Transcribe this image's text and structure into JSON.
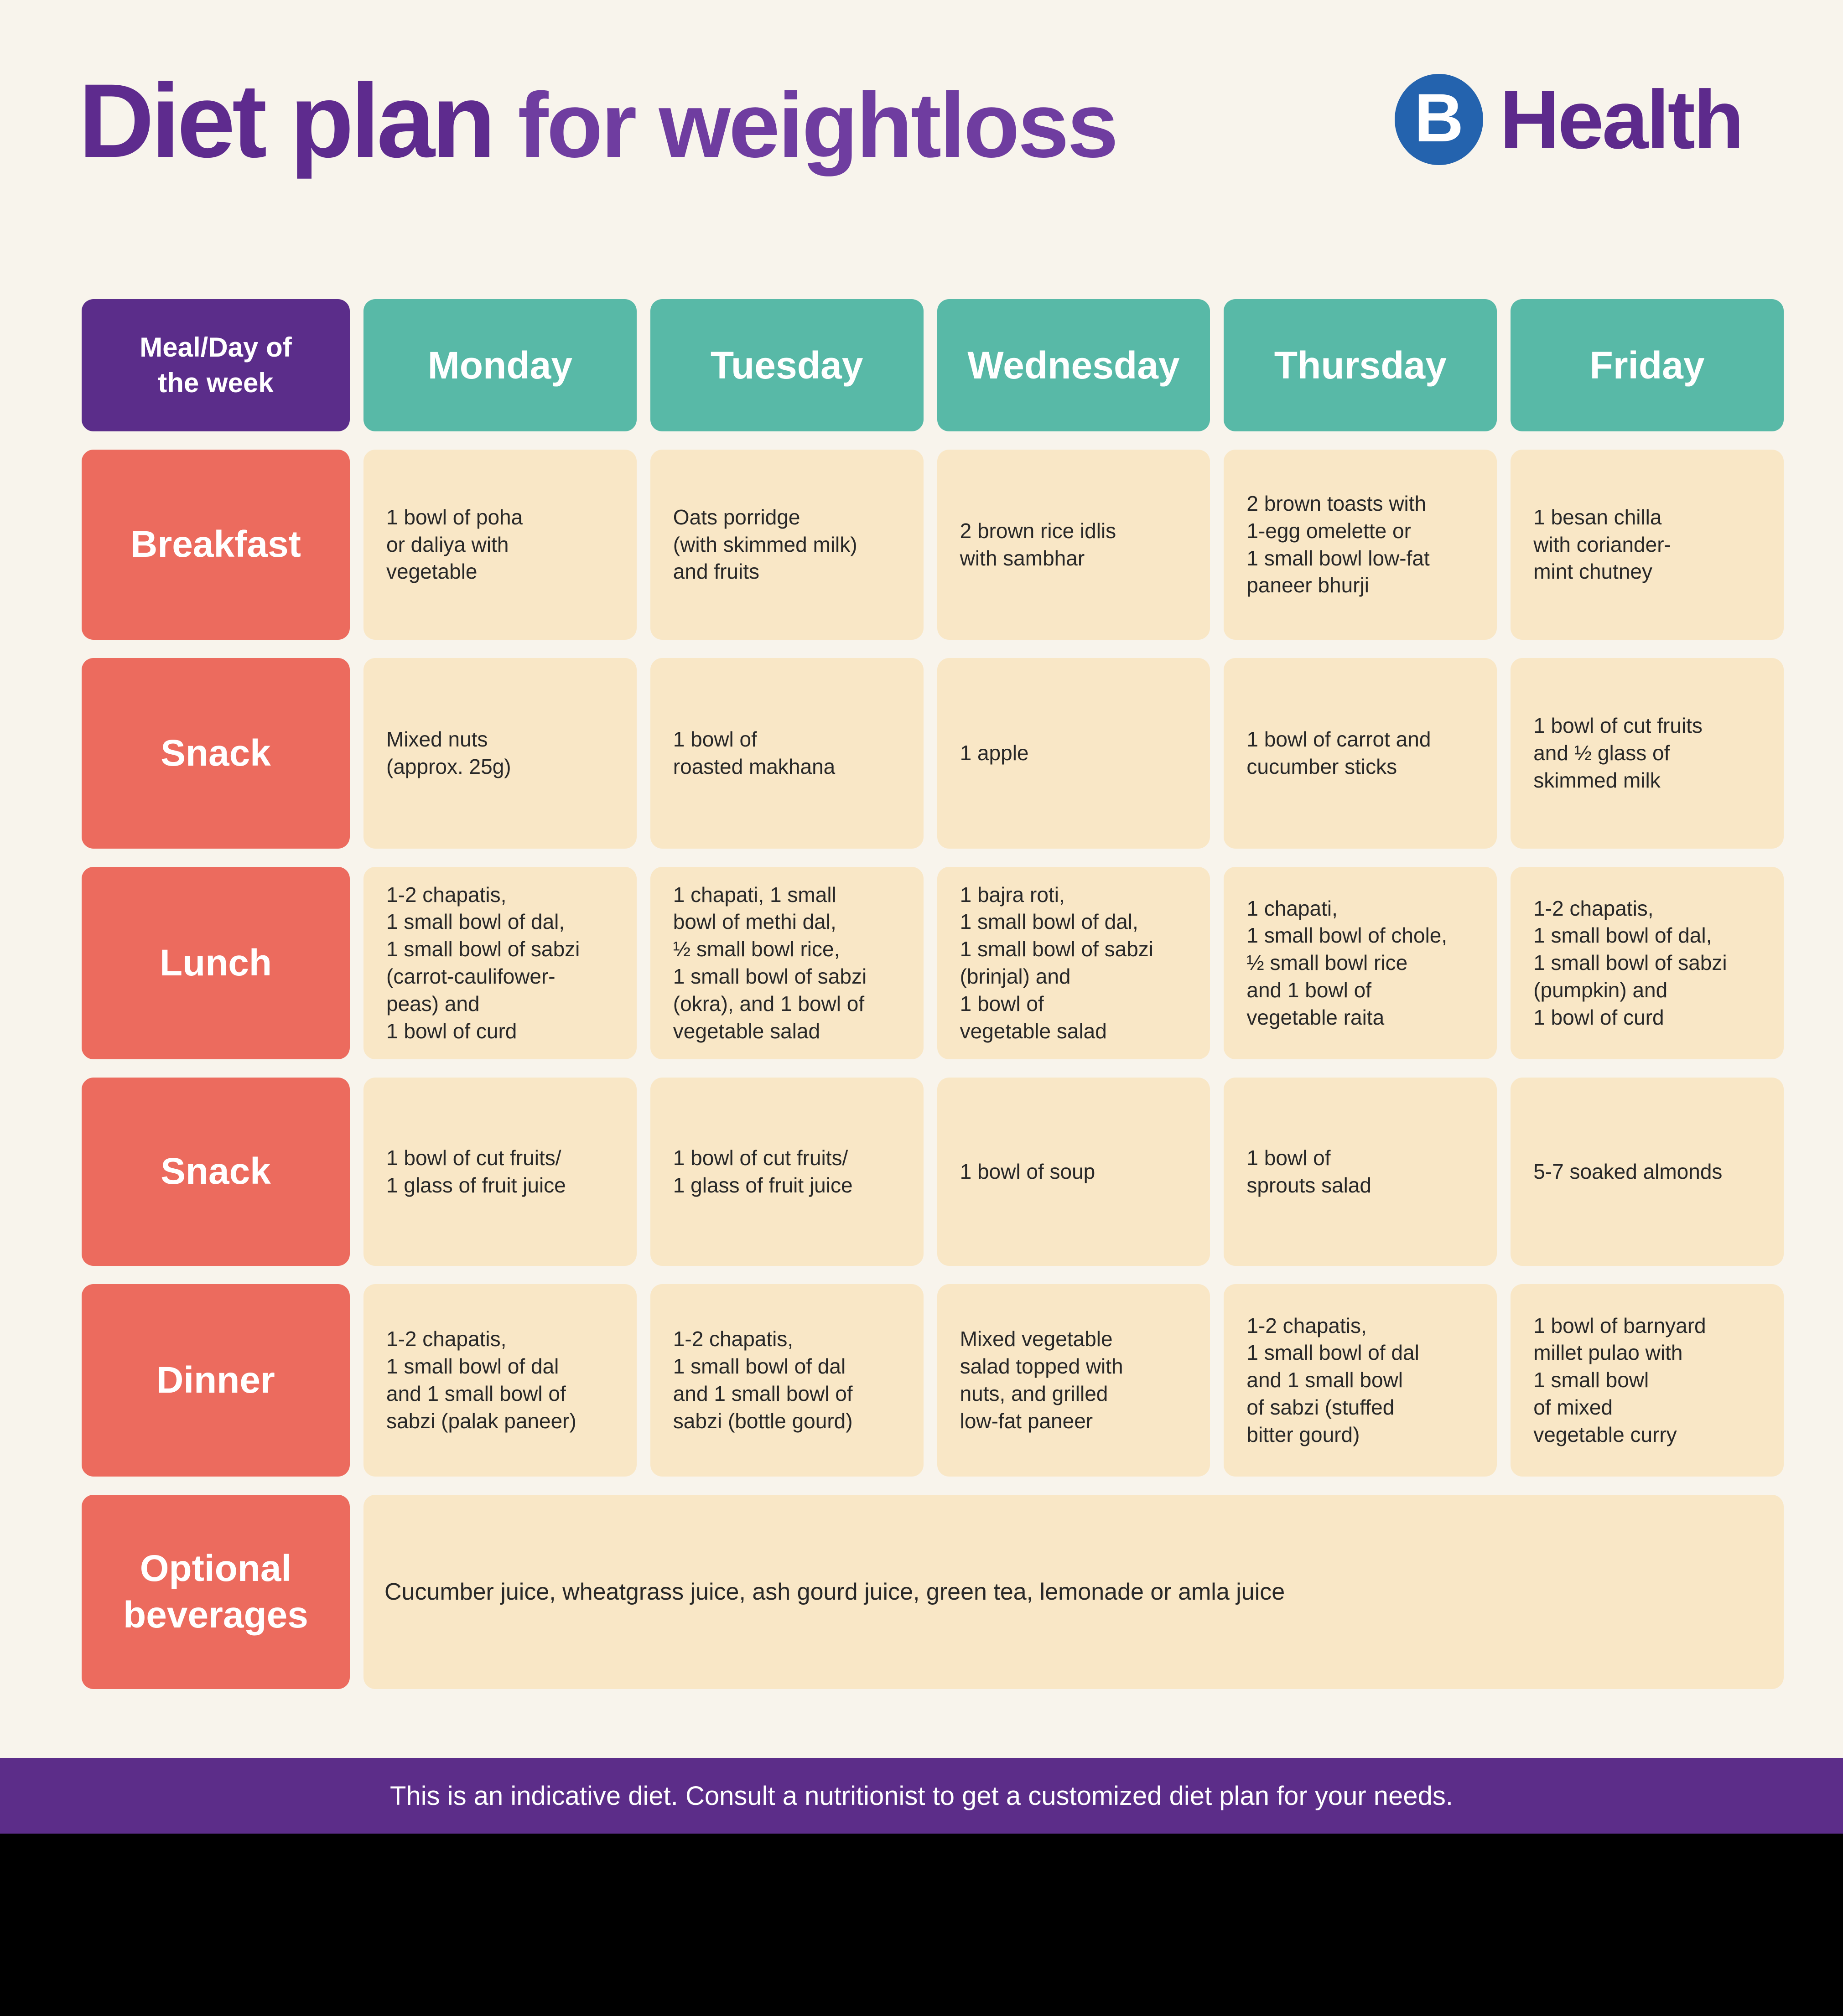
{
  "title": {
    "main": "Diet plan",
    "sub": "for weightloss"
  },
  "logo": {
    "monogram": "B",
    "brand": "Health"
  },
  "colors": {
    "background": "#f8f4ec",
    "title_purple": "#5e2b8e",
    "header_purple": "#5b2d8a",
    "day_teal": "#58b9a7",
    "label_coral": "#ec6b5e",
    "cell_beige": "#f9e7c6",
    "logo_blue": "#2463ae",
    "footer_purple": "#5c2d89",
    "bottom_band": "#000000"
  },
  "table": {
    "corner_header": "Meal/Day of\nthe week",
    "days": [
      "Monday",
      "Tuesday",
      "Wednesday",
      "Thursday",
      "Friday"
    ],
    "rows": [
      {
        "label": "Breakfast",
        "cells": [
          "1 bowl of poha\nor daliya with\nvegetable",
          "Oats porridge\n(with skimmed milk)\nand fruits",
          "2 brown rice idlis\nwith sambhar",
          "2 brown toasts with\n1-egg omelette or\n1 small bowl low-fat\npaneer bhurji",
          "1 besan chilla\nwith coriander-\nmint chutney"
        ]
      },
      {
        "label": "Snack",
        "cells": [
          "Mixed nuts\n(approx. 25g)",
          "1 bowl of\nroasted makhana",
          "1 apple",
          "1 bowl of carrot and\ncucumber sticks",
          "1 bowl of cut fruits\nand ½ glass of\nskimmed milk"
        ]
      },
      {
        "label": "Lunch",
        "cells": [
          "1-2 chapatis,\n1 small bowl of dal,\n1 small bowl of sabzi\n(carrot-caulifower-\npeas) and\n1 bowl of curd",
          "1 chapati, 1 small\nbowl of methi dal,\n½ small bowl rice,\n1 small bowl of sabzi\n(okra), and 1 bowl of\nvegetable salad",
          "1 bajra roti,\n1 small bowl of dal,\n1 small bowl of sabzi\n(brinjal) and\n1 bowl of\nvegetable salad",
          "1 chapati,\n1 small bowl of chole,\n½ small bowl rice\nand 1 bowl of\nvegetable raita",
          "1-2 chapatis,\n1 small bowl of dal,\n1 small bowl of sabzi\n(pumpkin) and\n1 bowl of curd"
        ]
      },
      {
        "label": "Snack",
        "cells": [
          "1 bowl of cut fruits/\n1 glass of fruit juice",
          "1 bowl of cut fruits/\n1 glass of fruit juice",
          "1 bowl of soup",
          "1 bowl of\nsprouts salad",
          "5-7 soaked almonds"
        ]
      },
      {
        "label": "Dinner",
        "cells": [
          "1-2 chapatis,\n1 small bowl of dal\nand 1 small bowl of\nsabzi (palak paneer)",
          "1-2 chapatis,\n1 small bowl of dal\nand 1 small bowl of\nsabzi (bottle gourd)",
          "Mixed vegetable\nsalad topped with\nnuts, and grilled\nlow-fat paneer",
          "1-2 chapatis,\n1 small bowl of dal\nand 1 small bowl\nof sabzi (stuffed\nbitter gourd)",
          "1 bowl of barnyard\nmillet pulao with\n1 small bowl\nof mixed\nvegetable curry"
        ]
      }
    ],
    "beverages": {
      "label": "Optional\nbeverages",
      "text": "Cucumber juice, wheatgrass juice, ash gourd juice, green tea, lemonade or amla juice"
    }
  },
  "footer": {
    "text": "This is an indicative diet. Consult a nutritionist to get a customized diet plan for your needs."
  }
}
